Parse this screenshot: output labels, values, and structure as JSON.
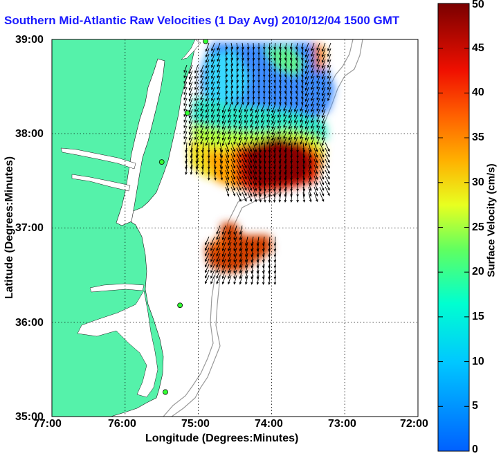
{
  "title": "Southern Mid-Atlantic Raw Velocities (1 Day Avg) 2010/12/04 1500 GMT",
  "xlabel": "Longitude (Degrees:Minutes)",
  "ylabel": "Latitude (Degrees:Minutes)",
  "colorbar": {
    "label": "Surface Velocity (cm/s)",
    "min": 0,
    "max": 50,
    "ticks": [
      "0",
      "5",
      "10",
      "15",
      "20",
      "25",
      "30",
      "35",
      "40",
      "45",
      "50"
    ]
  },
  "map": {
    "lon_range": [
      -77,
      -72
    ],
    "lat_range": [
      35,
      39
    ],
    "x_ticks": [
      "77:00",
      "76:00",
      "75:00",
      "74:00",
      "73:00",
      "72:00"
    ],
    "y_ticks": [
      "35:00",
      "36:00",
      "37:00",
      "38:00",
      "39:00"
    ],
    "grid": "dotted",
    "land_color": "#55f2aa",
    "radar_sites": [
      {
        "lon": -74.9,
        "lat": 38.98
      },
      {
        "lon": -75.15,
        "lat": 38.22
      },
      {
        "lon": -75.5,
        "lat": 37.7
      },
      {
        "lon": -75.25,
        "lat": 36.18
      },
      {
        "lon": -75.45,
        "lat": 35.26
      }
    ]
  }
}
